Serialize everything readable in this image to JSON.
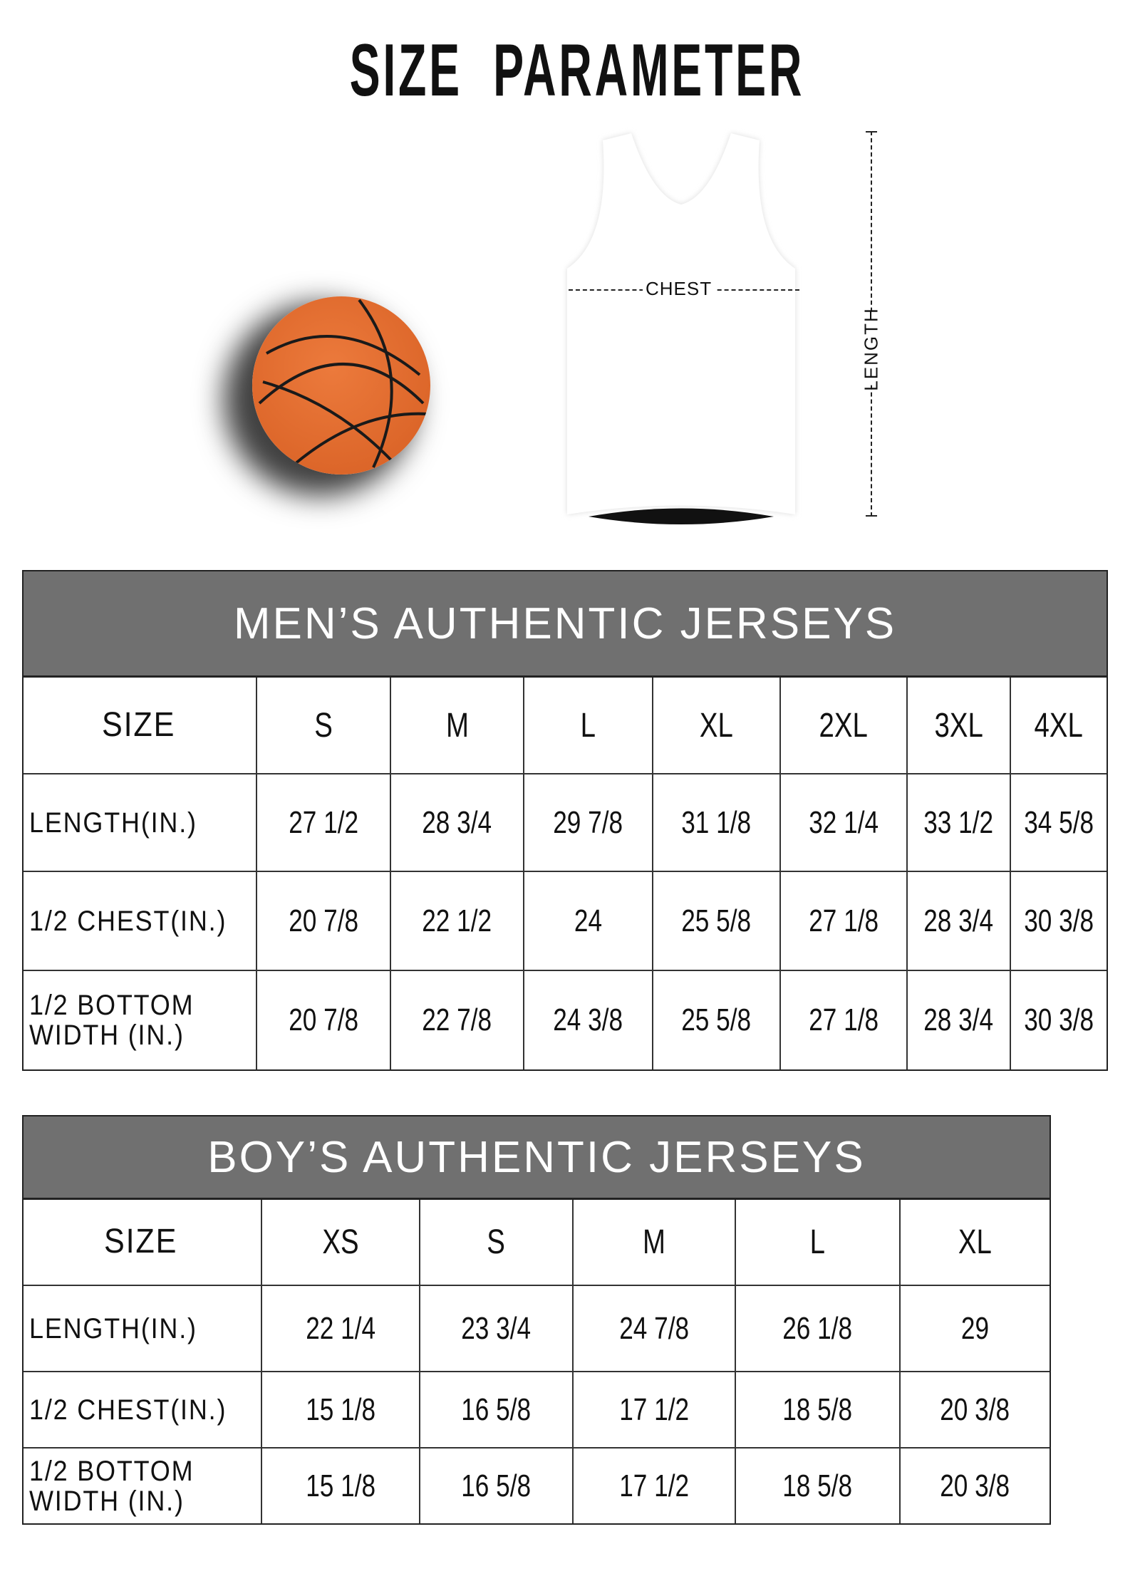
{
  "title": "SIZE  PARAMETER",
  "diagram": {
    "chest_label": "CHEST",
    "length_label": "LENGTH"
  },
  "colors": {
    "header_bg": "#707070",
    "ball": "#e06a2c"
  },
  "mens": {
    "title": "MEN’S AUTHENTIC JERSEYS",
    "headers": [
      "SIZE",
      "S",
      "M",
      "L",
      "XL",
      "2XL",
      "3XL",
      "4XL"
    ],
    "rows": [
      [
        "LENGTH(IN.)",
        "27  1/2",
        "28  3/4",
        "29  7/8",
        "31  1/8",
        "32  1/4",
        "33  1/2",
        "34  5/8"
      ],
      [
        "1/2 CHEST(IN.)",
        "20  7/8",
        "22  1/2",
        "24",
        "25  5/8",
        "27  1/8",
        "28  3/4",
        "30  3/8"
      ],
      [
        "1/2 BOTTOM\nWIDTH  (IN.)",
        "20  7/8",
        "22  7/8",
        "24  3/8",
        "25  5/8",
        "27  1/8",
        "28  3/4",
        "30  3/8"
      ]
    ]
  },
  "boys": {
    "title": "BOY’S AUTHENTIC JERSEYS",
    "headers": [
      "SIZE",
      "XS",
      "S",
      "M",
      "L",
      "XL"
    ],
    "rows": [
      [
        "LENGTH(IN.)",
        "22  1/4",
        "23  3/4",
        "24  7/8",
        "26  1/8",
        "29"
      ],
      [
        "1/2 CHEST(IN.)",
        "15  1/8",
        "16  5/8",
        "17  1/2",
        "18  5/8",
        "20  3/8"
      ],
      [
        "1/2 BOTTOM\nWIDTH  (IN.)",
        "15  1/8",
        "16  5/8",
        "17  1/2",
        "18  5/8",
        "20  3/8"
      ]
    ]
  }
}
